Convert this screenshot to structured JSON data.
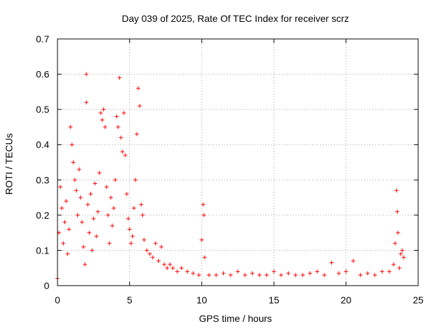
{
  "chart_data": {
    "type": "scatter",
    "title": "Day 039 of 2025, Rate Of TEC Index for receiver scrz",
    "xlabel": "GPS time / hours",
    "ylabel": "ROTI / TECUs",
    "xlim": [
      0,
      25
    ],
    "ylim": [
      0,
      0.7
    ],
    "x_ticks": [
      "0",
      "5",
      "10",
      "15",
      "20",
      "25"
    ],
    "y_ticks": [
      "0",
      "0.1",
      "0.2",
      "0.3",
      "0.4",
      "0.5",
      "0.6",
      "0.7"
    ],
    "grid": true,
    "marker": "+",
    "color": "#ff0000",
    "points": [
      [
        0.0,
        0.02
      ],
      [
        0.1,
        0.15
      ],
      [
        0.2,
        0.28
      ],
      [
        0.3,
        0.22
      ],
      [
        0.4,
        0.12
      ],
      [
        0.5,
        0.18
      ],
      [
        0.6,
        0.24
      ],
      [
        0.7,
        0.09
      ],
      [
        0.8,
        0.16
      ],
      [
        0.9,
        0.45
      ],
      [
        1.0,
        0.4
      ],
      [
        1.1,
        0.35
      ],
      [
        1.2,
        0.3
      ],
      [
        1.3,
        0.27
      ],
      [
        1.4,
        0.2
      ],
      [
        1.5,
        0.33
      ],
      [
        1.6,
        0.25
      ],
      [
        1.7,
        0.18
      ],
      [
        1.8,
        0.11
      ],
      [
        1.9,
        0.06
      ],
      [
        2.0,
        0.6
      ],
      [
        2.0,
        0.52
      ],
      [
        2.1,
        0.23
      ],
      [
        2.2,
        0.15
      ],
      [
        2.3,
        0.26
      ],
      [
        2.4,
        0.1
      ],
      [
        2.5,
        0.19
      ],
      [
        2.6,
        0.29
      ],
      [
        2.7,
        0.14
      ],
      [
        2.8,
        0.21
      ],
      [
        2.9,
        0.32
      ],
      [
        3.0,
        0.49
      ],
      [
        3.1,
        0.47
      ],
      [
        3.2,
        0.5
      ],
      [
        3.3,
        0.45
      ],
      [
        3.4,
        0.28
      ],
      [
        3.5,
        0.2
      ],
      [
        3.6,
        0.12
      ],
      [
        3.7,
        0.25
      ],
      [
        3.8,
        0.17
      ],
      [
        3.9,
        0.22
      ],
      [
        4.0,
        0.3
      ],
      [
        4.1,
        0.48
      ],
      [
        4.2,
        0.45
      ],
      [
        4.3,
        0.59
      ],
      [
        4.4,
        0.42
      ],
      [
        4.5,
        0.38
      ],
      [
        4.6,
        0.49
      ],
      [
        4.7,
        0.37
      ],
      [
        4.8,
        0.26
      ],
      [
        4.9,
        0.19
      ],
      [
        5.0,
        0.16
      ],
      [
        5.1,
        0.12
      ],
      [
        5.2,
        0.14
      ],
      [
        5.3,
        0.22
      ],
      [
        5.4,
        0.3
      ],
      [
        5.5,
        0.43
      ],
      [
        5.6,
        0.56
      ],
      [
        5.7,
        0.51
      ],
      [
        5.8,
        0.23
      ],
      [
        5.9,
        0.2
      ],
      [
        6.0,
        0.13
      ],
      [
        6.2,
        0.1
      ],
      [
        6.4,
        0.09
      ],
      [
        6.6,
        0.08
      ],
      [
        6.8,
        0.12
      ],
      [
        7.0,
        0.07
      ],
      [
        7.2,
        0.11
      ],
      [
        7.4,
        0.06
      ],
      [
        7.6,
        0.05
      ],
      [
        7.8,
        0.06
      ],
      [
        8.0,
        0.05
      ],
      [
        8.3,
        0.04
      ],
      [
        8.6,
        0.05
      ],
      [
        9.0,
        0.04
      ],
      [
        9.4,
        0.035
      ],
      [
        9.8,
        0.03
      ],
      [
        10.0,
        0.13
      ],
      [
        10.1,
        0.23
      ],
      [
        10.15,
        0.2
      ],
      [
        10.2,
        0.08
      ],
      [
        10.5,
        0.03
      ],
      [
        11.0,
        0.03
      ],
      [
        11.5,
        0.035
      ],
      [
        12.0,
        0.03
      ],
      [
        12.5,
        0.04
      ],
      [
        13.0,
        0.03
      ],
      [
        13.5,
        0.035
      ],
      [
        14.0,
        0.03
      ],
      [
        14.5,
        0.03
      ],
      [
        15.0,
        0.04
      ],
      [
        15.5,
        0.03
      ],
      [
        16.0,
        0.035
      ],
      [
        16.5,
        0.03
      ],
      [
        17.0,
        0.03
      ],
      [
        17.5,
        0.035
      ],
      [
        18.0,
        0.04
      ],
      [
        18.5,
        0.03
      ],
      [
        19.0,
        0.065
      ],
      [
        19.5,
        0.035
      ],
      [
        20.0,
        0.04
      ],
      [
        20.5,
        0.07
      ],
      [
        21.0,
        0.03
      ],
      [
        21.5,
        0.035
      ],
      [
        22.0,
        0.03
      ],
      [
        22.5,
        0.04
      ],
      [
        23.0,
        0.04
      ],
      [
        23.3,
        0.06
      ],
      [
        23.4,
        0.12
      ],
      [
        23.5,
        0.27
      ],
      [
        23.55,
        0.21
      ],
      [
        23.6,
        0.15
      ],
      [
        23.7,
        0.05
      ],
      [
        23.8,
        0.09
      ],
      [
        23.9,
        0.1
      ],
      [
        24.0,
        0.08
      ]
    ]
  }
}
